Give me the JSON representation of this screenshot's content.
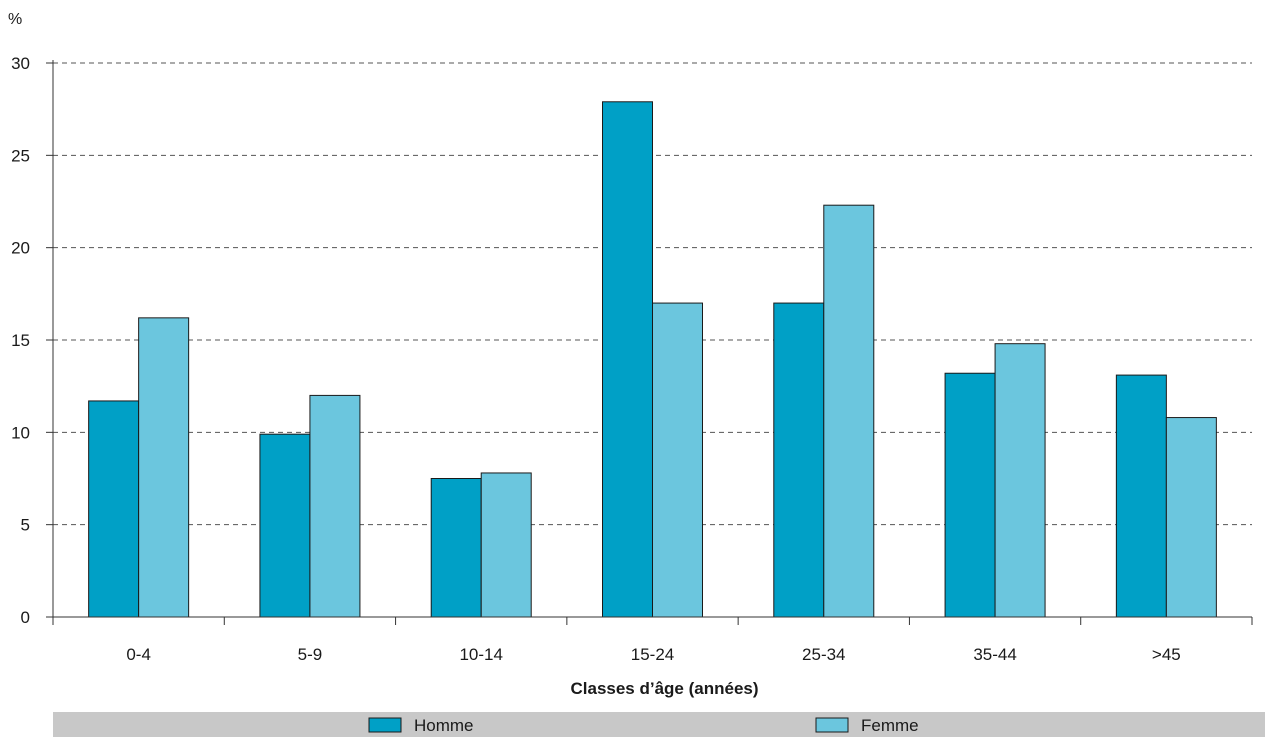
{
  "chart_data": {
    "type": "bar",
    "y_unit": "%",
    "xlabel": "Classes d’âge (années)",
    "ylabel": "",
    "title": "",
    "categories": [
      "0-4",
      "5-9",
      "10-14",
      "15-24",
      "25-34",
      "35-44",
      ">45"
    ],
    "series": [
      {
        "name": "Homme",
        "color": "#00a0c6",
        "values": [
          11.7,
          9.9,
          7.5,
          27.9,
          17.0,
          13.2,
          13.1
        ]
      },
      {
        "name": "Femme",
        "color": "#6bc6de",
        "values": [
          16.2,
          12.0,
          7.8,
          17.0,
          22.3,
          14.8,
          10.8
        ]
      }
    ],
    "ylim": [
      0,
      30
    ],
    "yticks": [
      0,
      5,
      10,
      15,
      20,
      25,
      30
    ],
    "grid": true,
    "grid_style": "dashed",
    "legend_position": "bottom"
  }
}
